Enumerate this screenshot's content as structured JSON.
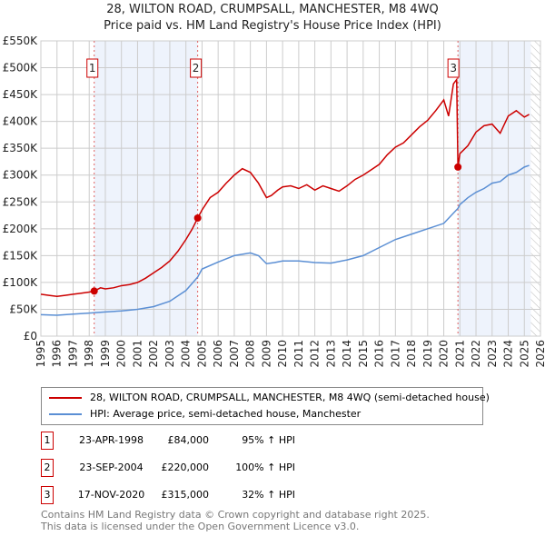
{
  "title": "28, WILTON ROAD, CRUMPSALL, MANCHESTER, M8 4WQ",
  "subtitle": "Price paid vs. HM Land Registry's House Price Index (HPI)",
  "chart_data": {
    "type": "line",
    "xlim": [
      1995,
      2026
    ],
    "ylim": [
      0,
      550000
    ],
    "yticks": [
      0,
      50000,
      100000,
      150000,
      200000,
      250000,
      300000,
      350000,
      400000,
      450000,
      500000,
      550000
    ],
    "ytick_labels": [
      "£0",
      "£50K",
      "£100K",
      "£150K",
      "£200K",
      "£250K",
      "£300K",
      "£350K",
      "£400K",
      "£450K",
      "£500K",
      "£550K"
    ],
    "xticks": [
      "1995",
      "1996",
      "1997",
      "1998",
      "1999",
      "2000",
      "2001",
      "2002",
      "2003",
      "2004",
      "2005",
      "2006",
      "2007",
      "2008",
      "2009",
      "2010",
      "2011",
      "2012",
      "2013",
      "2014",
      "2015",
      "2016",
      "2017",
      "2018",
      "2019",
      "2020",
      "2021",
      "2022",
      "2023",
      "2024",
      "2025",
      "2026"
    ],
    "grid": true,
    "shaded_periods": [
      [
        1998.31,
        2004.73
      ],
      [
        2020.88,
        2025.4
      ]
    ],
    "hatched_from": 2025.4,
    "series": [
      {
        "name": "28, WILTON ROAD, CRUMPSALL, MANCHESTER, M8 4WQ (semi-detached house)",
        "color": "#cc0000",
        "x": [
          1995,
          1995.5,
          1996,
          1996.5,
          1997,
          1997.5,
          1998,
          1998.31,
          1998.7,
          1999,
          1999.5,
          2000,
          2000.5,
          2001,
          2001.5,
          2002,
          2002.5,
          2003,
          2003.5,
          2004,
          2004.4,
          2004.73,
          2005,
          2005.5,
          2006,
          2006.5,
          2007,
          2007.5,
          2008,
          2008.5,
          2009,
          2009.3,
          2009.7,
          2010,
          2010.5,
          2011,
          2011.5,
          2012,
          2012.5,
          2013,
          2013.5,
          2014,
          2014.5,
          2015,
          2015.5,
          2016,
          2016.5,
          2017,
          2017.5,
          2018,
          2018.5,
          2019,
          2019.5,
          2020,
          2020.3,
          2020.6,
          2020.8,
          2020.88,
          2021,
          2021.5,
          2022,
          2022.5,
          2023,
          2023.5,
          2024,
          2024.5,
          2025,
          2025.3
        ],
        "y": [
          78000,
          76000,
          74000,
          76000,
          78000,
          80000,
          82000,
          84000,
          90000,
          88000,
          90000,
          94000,
          96000,
          100000,
          108000,
          118000,
          128000,
          140000,
          158000,
          180000,
          200000,
          220000,
          235000,
          258000,
          268000,
          285000,
          300000,
          312000,
          305000,
          285000,
          258000,
          262000,
          272000,
          278000,
          280000,
          275000,
          282000,
          272000,
          280000,
          275000,
          270000,
          280000,
          292000,
          300000,
          310000,
          320000,
          338000,
          352000,
          360000,
          375000,
          390000,
          402000,
          420000,
          440000,
          410000,
          470000,
          478000,
          315000,
          340000,
          355000,
          380000,
          392000,
          395000,
          378000,
          410000,
          420000,
          408000,
          413000
        ]
      },
      {
        "name": "HPI: Average price, semi-detached house, Manchester",
        "color": "#5b8fd4",
        "x": [
          1995,
          1996,
          1997,
          1998,
          1999,
          2000,
          2001,
          2002,
          2003,
          2004,
          2004.73,
          2005,
          2006,
          2007,
          2008,
          2008.5,
          2009,
          2009.5,
          2010,
          2011,
          2012,
          2013,
          2014,
          2015,
          2016,
          2017,
          2018,
          2019,
          2020,
          2020.88,
          2021,
          2021.5,
          2022,
          2022.5,
          2023,
          2023.5,
          2024,
          2024.5,
          2025,
          2025.3
        ],
        "y": [
          40000,
          39000,
          41000,
          43000,
          45000,
          47000,
          50000,
          55000,
          65000,
          85000,
          110000,
          125000,
          138000,
          150000,
          155000,
          150000,
          135000,
          137000,
          140000,
          140000,
          137000,
          136000,
          142000,
          150000,
          165000,
          180000,
          190000,
          200000,
          210000,
          238000,
          245000,
          258000,
          268000,
          275000,
          285000,
          288000,
          300000,
          305000,
          315000,
          318000
        ]
      }
    ],
    "legend_position": "below"
  },
  "sales": [
    {
      "num": "1",
      "date": "23-APR-1998",
      "price": "£84,000",
      "hpi": "95% ↑ HPI",
      "x": 1998.31,
      "y": 84000
    },
    {
      "num": "2",
      "date": "23-SEP-2004",
      "price": "£220,000",
      "hpi": "100% ↑ HPI",
      "x": 2004.73,
      "y": 220000
    },
    {
      "num": "3",
      "date": "17-NOV-2020",
      "price": "£315,000",
      "hpi": "32% ↑ HPI",
      "x": 2020.88,
      "y": 315000
    }
  ],
  "footer1": "Contains HM Land Registry data © Crown copyright and database right 2025.",
  "footer2": "This data is licensed under the Open Government Licence v3.0."
}
